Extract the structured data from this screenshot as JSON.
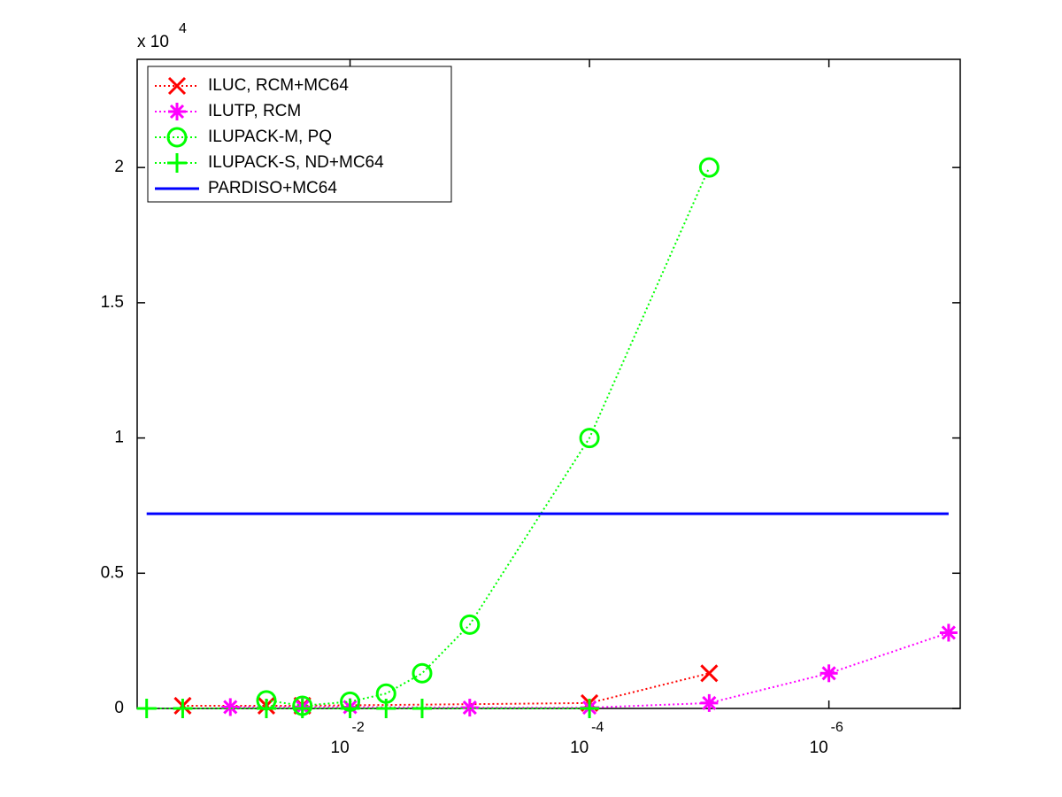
{
  "chart_data": {
    "type": "line",
    "y_multiplier": "x 10",
    "y_multiplier_exponent": "4",
    "xscale": "log",
    "xlim": [
      0.6,
      8e-08
    ],
    "ylim": [
      0,
      2.4
    ],
    "xticks": [
      {
        "value": 0.01,
        "label": "10",
        "exponent": "-2"
      },
      {
        "value": 0.0001,
        "label": "10",
        "exponent": "-4"
      },
      {
        "value": 1e-06,
        "label": "10",
        "exponent": "-6"
      }
    ],
    "yticks": [
      0,
      0.5,
      1,
      1.5,
      2
    ],
    "legend": "upper-left",
    "series": [
      {
        "name": "ILUC, RCM+MC64",
        "color": "#ff0000",
        "linestyle": "dotted",
        "marker": "x",
        "x": [
          0.25,
          0.05,
          0.025,
          0.0001,
          1e-05
        ],
        "values": [
          0.01,
          0.01,
          0.01,
          0.02,
          0.13
        ]
      },
      {
        "name": "ILUTP, RCM",
        "color": "#ff00ff",
        "linestyle": "dotted",
        "marker": "*",
        "x": [
          0.1,
          0.025,
          0.01,
          0.001,
          0.0001,
          1e-05,
          1e-06,
          1e-07
        ],
        "values": [
          0.005,
          0.005,
          0.005,
          0.003,
          0.003,
          0.02,
          0.13,
          0.28
        ]
      },
      {
        "name": "ILUPACK-M, PQ",
        "color": "#00ff00",
        "linestyle": "dotted",
        "marker": "o",
        "x": [
          0.05,
          0.025,
          0.01,
          0.005,
          0.0025,
          0.001,
          0.0001,
          1e-05
        ],
        "values": [
          0.03,
          0.01,
          0.025,
          0.055,
          0.13,
          0.31,
          1.0,
          2.0
        ]
      },
      {
        "name": "ILUPACK-S, ND+MC64",
        "color": "#00ff00",
        "linestyle": "dotted",
        "marker": "+",
        "x": [
          0.5,
          0.25,
          0.05,
          0.025,
          0.01,
          0.005,
          0.0025,
          0.0001
        ],
        "values": [
          0,
          0,
          0,
          0,
          0,
          0,
          0,
          0
        ]
      },
      {
        "name": "PARDISO+MC64",
        "color": "#0000ff",
        "linestyle": "solid",
        "marker": "none",
        "x": [
          0.5,
          1e-07
        ],
        "values": [
          0.72,
          0.72
        ]
      }
    ]
  }
}
